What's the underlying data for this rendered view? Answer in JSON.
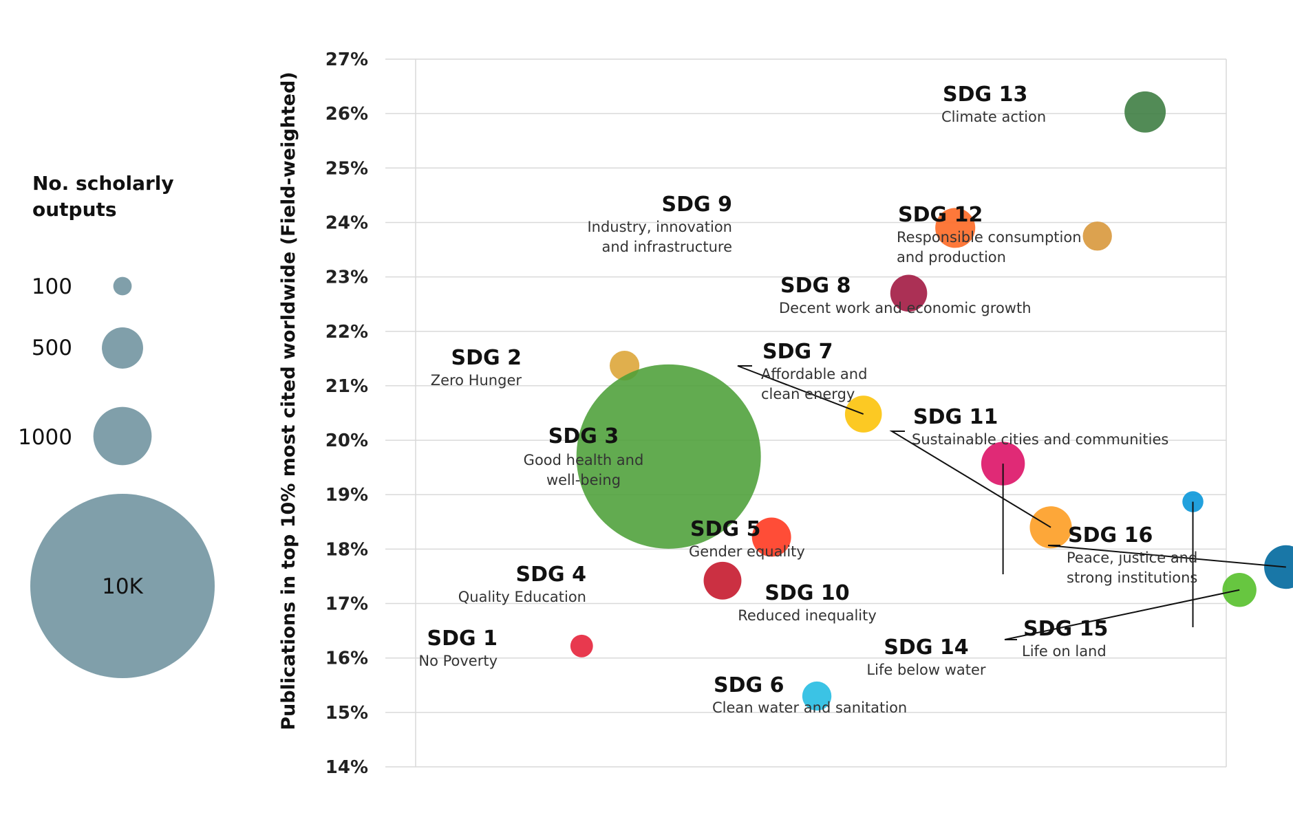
{
  "chart_data": {
    "type": "scatter",
    "subtype": "bubble",
    "title": "",
    "xlabel": "",
    "ylabel": "Publications in top 10% most cited worldwide (Field-weighted)",
    "ylim": [
      14,
      27
    ],
    "y_ticks": [
      "27%",
      "26%",
      "25%",
      "24%",
      "23%",
      "22%",
      "21%",
      "20%",
      "19%",
      "18%",
      "17%",
      "16%",
      "15%",
      "14%"
    ],
    "grid": true,
    "size_legend": {
      "title_lines": [
        "No. scholarly",
        "outputs"
      ],
      "color": "#809faa",
      "items": [
        {
          "label": "100",
          "value": 100,
          "label_inside": false
        },
        {
          "label": "500",
          "value": 500,
          "label_inside": false
        },
        {
          "label": "1000",
          "value": 1000,
          "label_inside": false
        },
        {
          "label": "10K",
          "value": 10000,
          "label_inside": true
        }
      ]
    },
    "points": [
      {
        "name": "SDG 1",
        "desc": [
          "No Poverty"
        ],
        "x": 0.135,
        "y": 16.22,
        "size": 150,
        "color": "#e5243b"
      },
      {
        "name": "SDG 2",
        "desc": [
          "Zero Hunger"
        ],
        "x": 0.17,
        "y": 21.37,
        "size": 260,
        "color": "#dda63a"
      },
      {
        "name": "SDG 3",
        "desc": [
          "Good health and",
          "well-being"
        ],
        "x": 0.206,
        "y": 19.7,
        "size": 10000,
        "color": "#4c9f38"
      },
      {
        "name": "SDG 4",
        "desc": [
          "Quality Education"
        ],
        "x": 0.25,
        "y": 17.42,
        "size": 420,
        "color": "#c5192d"
      },
      {
        "name": "SDG 5",
        "desc": [
          "Gender equality"
        ],
        "x": 0.29,
        "y": 18.22,
        "size": 450,
        "color": "#ff3a21"
      },
      {
        "name": "SDG 6",
        "desc": [
          "Clean water and sanitation"
        ],
        "x": 0.327,
        "y": 15.3,
        "size": 250,
        "color": "#26bde2"
      },
      {
        "name": "SDG 7",
        "desc": [
          "Affordable and",
          "clean energy"
        ],
        "x": 0.365,
        "y": 20.48,
        "size": 400,
        "color": "#fcc30b"
      },
      {
        "name": "SDG 8",
        "desc": [
          "Decent work and economic growth"
        ],
        "x": 0.402,
        "y": 22.7,
        "size": 400,
        "color": "#a21942"
      },
      {
        "name": "SDG 9",
        "desc": [
          "Industry, innovation",
          "and infrastructure"
        ],
        "x": 0.44,
        "y": 23.9,
        "size": 470,
        "color": "#fd6925"
      },
      {
        "name": "SDG 10",
        "desc": [
          "Reduced inequality"
        ],
        "x": 0.479,
        "y": 19.57,
        "size": 560,
        "color": "#dd1367"
      },
      {
        "name": "SDG 11",
        "desc": [
          "Sustainable cities and communities"
        ],
        "x": 0.518,
        "y": 18.4,
        "size": 520,
        "color": "#fd9d24"
      },
      {
        "name": "SDG 12",
        "desc": [
          "Responsible consumption",
          "and production"
        ],
        "x": 0.556,
        "y": 23.75,
        "size": 250,
        "color": "#d8983c"
      },
      {
        "name": "SDG 13",
        "desc": [
          "Climate action"
        ],
        "x": 0.595,
        "y": 26.03,
        "size": 500,
        "color": "#3f7e44"
      },
      {
        "name": "SDG 14",
        "desc": [
          "Life below water"
        ],
        "x": 0.634,
        "y": 18.87,
        "size": 130,
        "color": "#0a97d9"
      },
      {
        "name": "SDG 15",
        "desc": [
          "Life on land"
        ],
        "x": 0.672,
        "y": 17.25,
        "size": 340,
        "color": "#56c02b"
      },
      {
        "name": "SDG 16",
        "desc": [
          "Peace, justice and",
          "strong institutions"
        ],
        "x": 0.71,
        "y": 17.67,
        "size": 560,
        "color": "#00689d"
      }
    ]
  }
}
